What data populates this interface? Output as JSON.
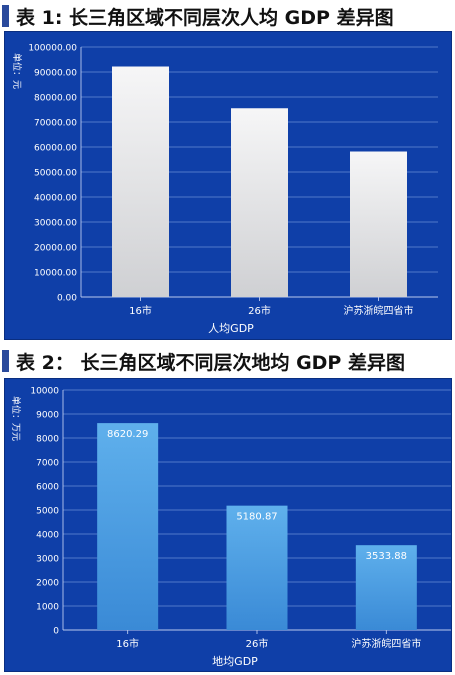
{
  "section1": {
    "title": "表 1: 长三角区域不同层次人均 GDP 差异图"
  },
  "section2": {
    "title": "表 2： 长三角区域不同层次地均 GDP 差异图"
  },
  "chart_data": [
    {
      "type": "bar",
      "categories": [
        "16市",
        "26市",
        "沪苏浙皖四省市"
      ],
      "values": [
        92200,
        75500,
        58200
      ],
      "tick_labels": [
        "0.00",
        "10000.00",
        "20000.00",
        "30000.00",
        "40000.00",
        "50000.00",
        "60000.00",
        "70000.00",
        "80000.00",
        "90000.00",
        "100000.00"
      ],
      "ylim": [
        0,
        100000
      ],
      "ylabel": "单位：元",
      "xlabel": "人均GDP",
      "grid": true,
      "bar_color": "#e4e4e6"
    },
    {
      "type": "bar",
      "categories": [
        "16市",
        "26市",
        "沪苏浙皖四省市"
      ],
      "values": [
        8620.29,
        5180.87,
        3533.88
      ],
      "data_labels": [
        "8620.29",
        "5180.87",
        "3533.88"
      ],
      "tick_labels": [
        "0",
        "1000",
        "2000",
        "3000",
        "4000",
        "5000",
        "6000",
        "7000",
        "8000",
        "9000",
        "10000"
      ],
      "ylim": [
        0,
        10000
      ],
      "ylabel": "单位：万元",
      "xlabel": "地均GDP",
      "grid": true,
      "bar_color": "#4a9ee0"
    }
  ]
}
